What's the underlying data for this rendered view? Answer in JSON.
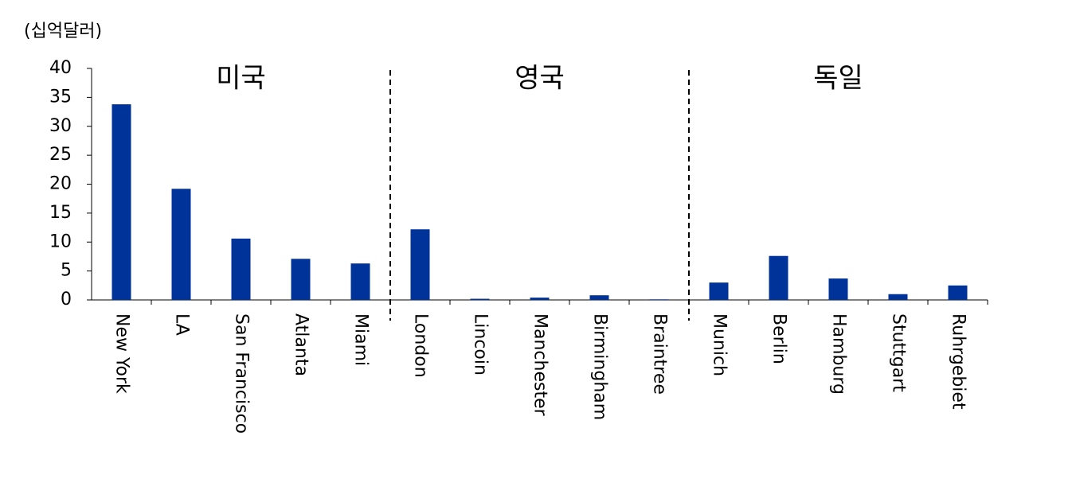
{
  "chart_data": {
    "type": "bar",
    "unit_label": "(십억달러)",
    "groups": [
      "미국",
      "영국",
      "독일"
    ],
    "categories": [
      "New York",
      "LA",
      "San Francisco",
      "Atlanta",
      "Miami",
      "London",
      "Lincoin",
      "Manchester",
      "Birmingham",
      "Braintree",
      "Munich",
      "Berlin",
      "Hamburg",
      "Stuttgart",
      "Ruhrgebiet"
    ],
    "values": [
      33.8,
      19.2,
      10.6,
      7.1,
      6.3,
      12.2,
      0.2,
      0.4,
      0.8,
      0.1,
      3.0,
      7.6,
      3.7,
      1.0,
      2.5
    ],
    "color": "#003399",
    "ylim": [
      0,
      40
    ],
    "yticks": [
      0,
      5,
      10,
      15,
      20,
      25,
      30,
      35,
      40
    ],
    "grid": false
  }
}
